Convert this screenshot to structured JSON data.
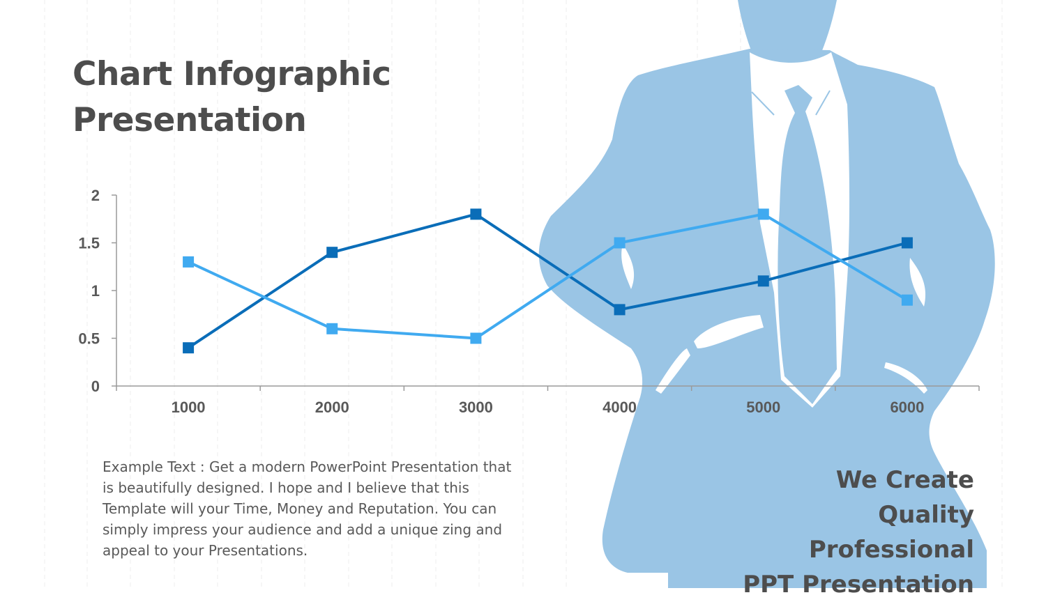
{
  "slide": {
    "title_line1": "Chart Infographic",
    "title_line2": "Presentation",
    "body_text": "Example Text : Get a modern PowerPoint  Presentation that is beautifully designed. I hope and I believe that this Template will your Time, Money and Reputation. You can simply impress your audience and add a unique zing and appeal to your Presentations.",
    "tagline": [
      "We Create",
      "Quality",
      "Professional",
      "PPT Presentation"
    ],
    "silhouette_icon": "businessman-silhouette-icon"
  },
  "colors": {
    "text": "#4d4d4d",
    "silhouette": "#9ac5e5",
    "series_dark": "#0a6db8",
    "series_light": "#40aaf0",
    "axis": "#9a9a9a"
  },
  "chart_data": {
    "type": "line",
    "categories": [
      "1000",
      "2000",
      "3000",
      "4000",
      "5000",
      "6000"
    ],
    "series": [
      {
        "values": [
          0.4,
          1.4,
          1.8,
          0.8,
          1.1,
          1.5
        ],
        "color": "#0a6db8"
      },
      {
        "values": [
          1.3,
          0.6,
          0.5,
          1.5,
          1.8,
          0.9
        ],
        "color": "#40aaf0"
      }
    ],
    "ylim": [
      0,
      2
    ],
    "yticks": [
      "0",
      "0.5",
      "1",
      "1.5",
      "2"
    ],
    "marker": "square",
    "grid": false,
    "legend": "none"
  }
}
